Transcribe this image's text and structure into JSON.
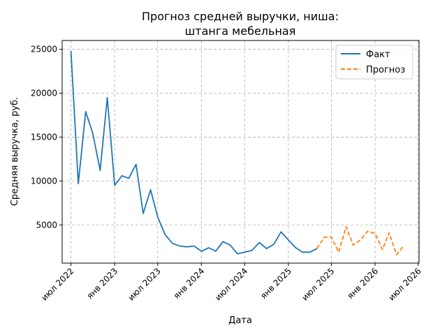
{
  "chart_data": {
    "type": "line",
    "title_lines": [
      "Прогноз средней выручки, ниша:",
      "штанга мебельная"
    ],
    "xlabel": "Дата",
    "ylabel": "Средняя выручка, руб.",
    "x_ticks": [
      {
        "date": "2022-07-01",
        "label": "июл 2022"
      },
      {
        "date": "2023-01-01",
        "label": "янв 2023"
      },
      {
        "date": "2023-07-01",
        "label": "июл 2023"
      },
      {
        "date": "2024-01-01",
        "label": "янв 2024"
      },
      {
        "date": "2024-07-01",
        "label": "июл 2024"
      },
      {
        "date": "2025-01-01",
        "label": "янв 2025"
      },
      {
        "date": "2025-07-01",
        "label": "июл 2025"
      },
      {
        "date": "2026-01-01",
        "label": "янв 2026"
      },
      {
        "date": "2026-07-01",
        "label": "июл 2026"
      }
    ],
    "xlim": [
      "2022-05-25",
      "2026-07-05"
    ],
    "y_ticks": [
      5000,
      10000,
      15000,
      20000,
      25000
    ],
    "ylim": [
      650,
      26000
    ],
    "grid": true,
    "legend_position": "top-right",
    "series": [
      {
        "name": "Факт",
        "style": "solid",
        "color": "#1f77b4",
        "points": [
          [
            "2022-07-01",
            24800
          ],
          [
            "2022-08-01",
            9700
          ],
          [
            "2022-09-01",
            17900
          ],
          [
            "2022-10-01",
            15400
          ],
          [
            "2022-11-01",
            11200
          ],
          [
            "2022-12-01",
            19500
          ],
          [
            "2023-01-01",
            9500
          ],
          [
            "2023-02-01",
            10600
          ],
          [
            "2023-03-01",
            10300
          ],
          [
            "2023-04-01",
            11900
          ],
          [
            "2023-05-01",
            6300
          ],
          [
            "2023-06-01",
            9000
          ],
          [
            "2023-07-01",
            5900
          ],
          [
            "2023-08-01",
            3900
          ],
          [
            "2023-09-01",
            2900
          ],
          [
            "2023-10-01",
            2600
          ],
          [
            "2023-11-01",
            2500
          ],
          [
            "2023-12-01",
            2600
          ],
          [
            "2024-01-01",
            2000
          ],
          [
            "2024-02-01",
            2400
          ],
          [
            "2024-03-01",
            2000
          ],
          [
            "2024-04-01",
            3100
          ],
          [
            "2024-05-01",
            2700
          ],
          [
            "2024-06-01",
            1700
          ],
          [
            "2024-07-01",
            1900
          ],
          [
            "2024-08-01",
            2100
          ],
          [
            "2024-09-01",
            3000
          ],
          [
            "2024-10-01",
            2300
          ],
          [
            "2024-11-01",
            2800
          ],
          [
            "2024-12-01",
            4200
          ],
          [
            "2025-01-01",
            3300
          ],
          [
            "2025-02-01",
            2400
          ],
          [
            "2025-03-01",
            1900
          ],
          [
            "2025-04-01",
            1900
          ],
          [
            "2025-05-01",
            2300
          ]
        ]
      },
      {
        "name": "Прогноз",
        "style": "dashed",
        "color": "#ff7f0e",
        "points": [
          [
            "2025-05-01",
            2300
          ],
          [
            "2025-06-01",
            3600
          ],
          [
            "2025-07-01",
            3600
          ],
          [
            "2025-08-01",
            1900
          ],
          [
            "2025-09-01",
            4800
          ],
          [
            "2025-10-01",
            2700
          ],
          [
            "2025-11-01",
            3300
          ],
          [
            "2025-12-01",
            4300
          ],
          [
            "2026-01-01",
            4000
          ],
          [
            "2026-02-01",
            2200
          ],
          [
            "2026-03-01",
            4100
          ],
          [
            "2026-04-01",
            1600
          ],
          [
            "2026-05-01",
            2600
          ]
        ]
      }
    ]
  }
}
